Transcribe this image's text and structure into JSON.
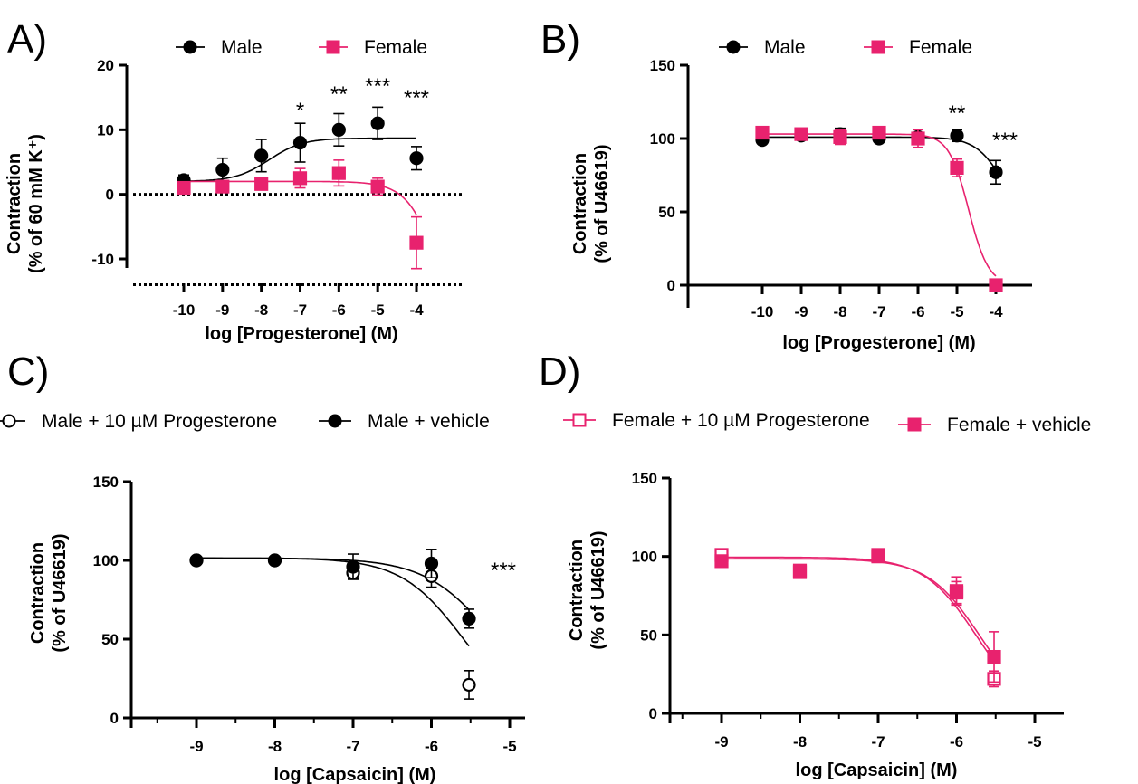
{
  "colors": {
    "male": "#000000",
    "female": "#e8226e"
  },
  "chart_data": [
    {
      "panel": "A)",
      "type": "scatter",
      "marker_style": "errorbar-with-fit",
      "xlabel": "log [Progesterone] (M)",
      "ylabel": [
        "Contraction",
        "(% of 60 mM K⁺)"
      ],
      "xticks": [
        -10,
        -9,
        -8,
        -7,
        -6,
        -5,
        -4
      ],
      "yticks": [
        -10,
        0,
        10,
        20
      ],
      "ylim": [
        -14,
        20
      ],
      "reference_lines": [
        0,
        -14
      ],
      "legend": {
        "placement": "top"
      },
      "series": [
        {
          "name": "Male",
          "color": "#000000",
          "marker": "circle",
          "filled": true,
          "x": [
            -10,
            -9,
            -8,
            -7,
            -6,
            -5,
            -4
          ],
          "y": [
            2.2,
            3.8,
            6.0,
            8.0,
            10.0,
            11.0,
            5.6
          ],
          "err": [
            0.8,
            1.8,
            2.5,
            3.0,
            2.5,
            2.5,
            1.8
          ],
          "fit": {
            "bottom": 2.0,
            "top": 8.7,
            "logEC50": -7.8,
            "hill": 1.0
          }
        },
        {
          "name": "Female",
          "color": "#e8226e",
          "marker": "square",
          "filled": true,
          "x": [
            -10,
            -9,
            -8,
            -7,
            -6,
            -5,
            -4
          ],
          "y": [
            1.0,
            1.2,
            1.6,
            2.5,
            3.3,
            1.2,
            -7.5
          ],
          "err": [
            0.6,
            0.6,
            0.7,
            1.5,
            2.0,
            1.3,
            4.0
          ],
          "fit": {
            "bottom": 2.0,
            "top": -55,
            "logEC50": -3.0,
            "hill": 1.0
          }
        }
      ],
      "annotations": [
        {
          "text": "*",
          "x": -7
        },
        {
          "text": "**",
          "x": -6
        },
        {
          "text": "***",
          "x": -5
        },
        {
          "text": "***",
          "x": -4
        }
      ]
    },
    {
      "panel": "B)",
      "type": "scatter",
      "marker_style": "errorbar-with-fit",
      "xlabel": "log [Progesterone] (M)",
      "ylabel": [
        "Contraction",
        "(% of U46619)"
      ],
      "xticks": [
        -10,
        -9,
        -8,
        -7,
        -6,
        -5,
        -4
      ],
      "yticks": [
        0,
        50,
        100,
        150
      ],
      "ylim": [
        0,
        150
      ],
      "legend": {
        "placement": "top"
      },
      "series": [
        {
          "name": "Male",
          "color": "#000000",
          "marker": "circle",
          "filled": true,
          "x": [
            -10,
            -9,
            -8,
            -7,
            -6,
            -5,
            -4
          ],
          "y": [
            99,
            102,
            103,
            100,
            101,
            102,
            77
          ],
          "err": [
            2,
            3,
            4,
            2,
            5,
            4,
            8
          ],
          "fit": {
            "bottom": 101,
            "top": 40,
            "logEC50": -3.8,
            "hill": 1.2
          }
        },
        {
          "name": "Female",
          "color": "#e8226e",
          "marker": "square",
          "filled": true,
          "x": [
            -10,
            -9,
            -8,
            -7,
            -6,
            -5,
            -4
          ],
          "y": [
            104,
            103,
            101,
            104,
            100,
            80,
            0
          ],
          "err": [
            2,
            3,
            5,
            3,
            6,
            6,
            2
          ],
          "fit": {
            "bottom": 103,
            "top": 0,
            "logEC50": -4.7,
            "hill": 1.7
          }
        }
      ],
      "annotations": [
        {
          "text": "**",
          "x": -5
        },
        {
          "text": "***",
          "x": -4
        }
      ]
    },
    {
      "panel": "C)",
      "type": "scatter",
      "marker_style": "errorbar-with-fit",
      "xlabel": "log [Capsaicin] (M)",
      "ylabel": [
        "Contraction",
        "(% of U46619)"
      ],
      "xticks": [
        -9,
        -8,
        -7,
        -6,
        -5
      ],
      "yticks": [
        0,
        50,
        100,
        150
      ],
      "ylim": [
        0,
        150
      ],
      "xlim": [
        -9.15,
        -4.95
      ],
      "legend": {
        "placement": "top"
      },
      "series": [
        {
          "name": "Male + 10 µM Progesterone",
          "color": "#000000",
          "marker": "circle",
          "filled": false,
          "x": [
            -9,
            -8,
            -7,
            -6,
            -5.52
          ],
          "y": [
            100,
            100,
            92,
            90,
            21
          ],
          "err": [
            1,
            1,
            4,
            7,
            9
          ],
          "fit": {
            "bottom": 101.5,
            "top": 0,
            "logEC50": -5.6,
            "hill": 1.1
          }
        },
        {
          "name": "Male + vehicle",
          "color": "#000000",
          "marker": "circle",
          "filled": true,
          "x": [
            -9,
            -8,
            -7,
            -6,
            -5.52
          ],
          "y": [
            100,
            100,
            96,
            98,
            63
          ],
          "err": [
            1,
            1,
            8,
            9,
            6
          ],
          "fit": {
            "bottom": 101.5,
            "top": 0,
            "logEC50": -5.2,
            "hill": 1.0
          }
        }
      ],
      "annotations": [
        {
          "text": "***",
          "x": -5.52
        }
      ]
    },
    {
      "panel": "D)",
      "type": "scatter",
      "marker_style": "errorbar-with-fit",
      "xlabel": "log [Capsaicin] (M)",
      "ylabel": [
        "Contraction",
        "(% of U46619)"
      ],
      "xticks": [
        -9,
        -8,
        -7,
        -6,
        -5
      ],
      "yticks": [
        0,
        50,
        100,
        150
      ],
      "ylim": [
        0,
        150
      ],
      "xlim": [
        -9.15,
        -4.95
      ],
      "legend": {
        "placement": "top"
      },
      "series": [
        {
          "name": "Female + 10 µM Progesterone",
          "color": "#e8226e",
          "marker": "square",
          "filled": false,
          "x": [
            -9,
            -8,
            -7,
            -6,
            -5.52
          ],
          "y": [
            101,
            91,
            101,
            77,
            22
          ],
          "err": [
            2,
            3,
            3,
            7,
            5
          ],
          "fit": {
            "bottom": 99.5,
            "top": 0,
            "logEC50": -5.75,
            "hill": 1.3
          }
        },
        {
          "name": "Female + vehicle",
          "color": "#e8226e",
          "marker": "square",
          "filled": true,
          "x": [
            -9,
            -8,
            -7,
            -6,
            -5.52
          ],
          "y": [
            97,
            90,
            100,
            78,
            36
          ],
          "err": [
            2,
            3,
            3,
            9,
            16
          ],
          "fit": {
            "bottom": 98.5,
            "top": 0,
            "logEC50": -5.7,
            "hill": 1.3
          }
        }
      ]
    }
  ]
}
